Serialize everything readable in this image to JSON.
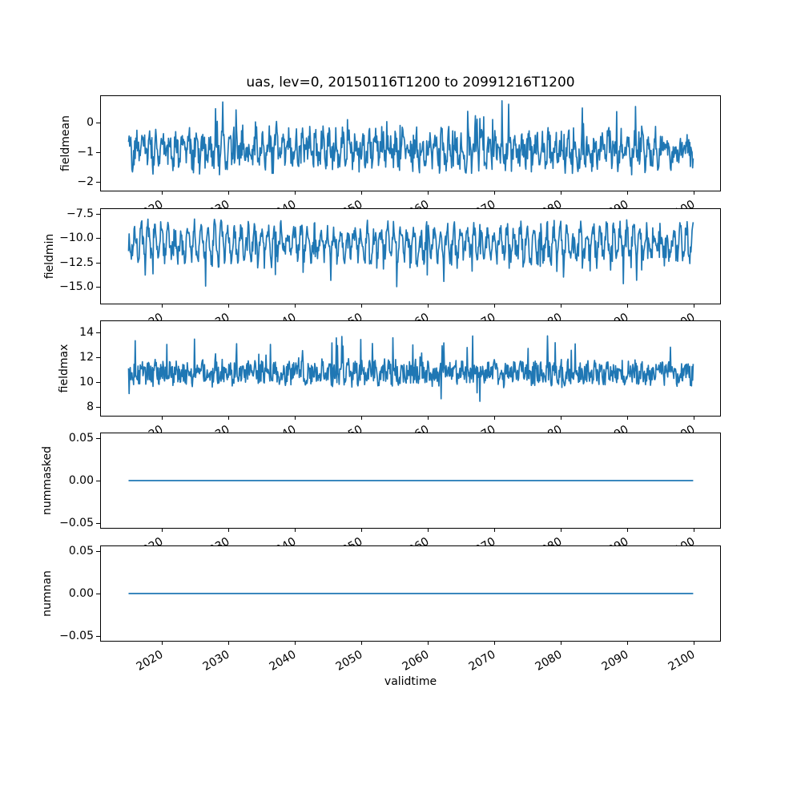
{
  "page": {
    "title": "uas, lev=0, 20150116T1200 to 20991216T1200",
    "xlabel": "validtime"
  },
  "style": {
    "line_color": "#1f77b4",
    "axes_edge_color": "#000000",
    "text_color": "#000000",
    "background": "#ffffff"
  },
  "x_axis": {
    "label": "validtime",
    "lim": [
      2010.76,
      2104.13
    ],
    "data_start": 2015.04,
    "data_end": 2099.96,
    "rotation_deg": 30,
    "ticks": [
      {
        "label": "2020",
        "value": 2020
      },
      {
        "label": "2030",
        "value": 2030
      },
      {
        "label": "2040",
        "value": 2040
      },
      {
        "label": "2050",
        "value": 2050
      },
      {
        "label": "2060",
        "value": 2060
      },
      {
        "label": "2070",
        "value": 2070
      },
      {
        "label": "2080",
        "value": 2080
      },
      {
        "label": "2090",
        "value": 2090
      },
      {
        "label": "2100",
        "value": 2100
      }
    ]
  },
  "chart_data": [
    {
      "type": "line",
      "ylabel": "fieldmean",
      "ylim": [
        -2.33,
        0.93
      ],
      "yticks": [
        {
          "label": "0",
          "value": 0
        },
        {
          "label": "−1",
          "value": -1
        },
        {
          "label": "−2",
          "value": -2
        }
      ],
      "series": {
        "kind": "noise",
        "n": 1020,
        "seed": 42,
        "base": -0.92,
        "season_amp": 0.35,
        "season_period": 12,
        "phase": 0.5,
        "noise_amp": 0.5,
        "spikes": [
          {
            "prob": 0.05,
            "amp": 1.05
          },
          {
            "prob": 0.012,
            "amp": -0.55
          }
        ],
        "clamp": [
          -2.28,
          0.84
        ]
      }
    },
    {
      "type": "line",
      "ylabel": "fieldmin",
      "ylim": [
        -16.78,
        -6.95
      ],
      "yticks": [
        {
          "label": "−7.5",
          "value": -7.5
        },
        {
          "label": "−10.0",
          "value": -10.0
        },
        {
          "label": "−12.5",
          "value": -12.5
        },
        {
          "label": "−15.0",
          "value": -15.0
        }
      ],
      "series": {
        "kind": "noise",
        "n": 1020,
        "seed": 7,
        "base": -10.4,
        "season_amp": 1.35,
        "season_period": 12,
        "phase": 2.0,
        "noise_amp": 1.0,
        "spikes": [
          {
            "prob": 0.1,
            "amp": -1.2
          },
          {
            "prob": 0.03,
            "amp": -3.2
          }
        ],
        "clamp": [
          -16.45,
          -7.65
        ]
      }
    },
    {
      "type": "line",
      "ylabel": "fieldmax",
      "ylim": [
        7.23,
        14.97
      ],
      "yticks": [
        {
          "label": "8",
          "value": 8
        },
        {
          "label": "10",
          "value": 10
        },
        {
          "label": "12",
          "value": 12
        },
        {
          "label": "14",
          "value": 14
        }
      ],
      "series": {
        "kind": "noise",
        "n": 1020,
        "seed": 13,
        "base": 10.75,
        "season_amp": 0.3,
        "season_period": 12,
        "phase": 1.0,
        "noise_amp": 0.85,
        "spikes": [
          {
            "prob": 0.035,
            "amp": 2.6
          },
          {
            "prob": 0.01,
            "amp": -2.2
          }
        ],
        "clamp": [
          7.45,
          14.75
        ]
      }
    },
    {
      "type": "line",
      "ylabel": "nummasked",
      "ylim": [
        -0.0562,
        0.0562
      ],
      "yticks": [
        {
          "label": "0.05",
          "value": 0.05
        },
        {
          "label": "0.00",
          "value": 0.0
        },
        {
          "label": "−0.05",
          "value": -0.05
        }
      ],
      "series": {
        "kind": "constant",
        "value": 0.0,
        "n": 1020
      }
    },
    {
      "type": "line",
      "ylabel": "numnan",
      "ylim": [
        -0.0562,
        0.0562
      ],
      "yticks": [
        {
          "label": "0.05",
          "value": 0.05
        },
        {
          "label": "0.00",
          "value": 0.0
        },
        {
          "label": "−0.05",
          "value": -0.05
        }
      ],
      "series": {
        "kind": "constant",
        "value": 0.0,
        "n": 1020
      }
    }
  ]
}
